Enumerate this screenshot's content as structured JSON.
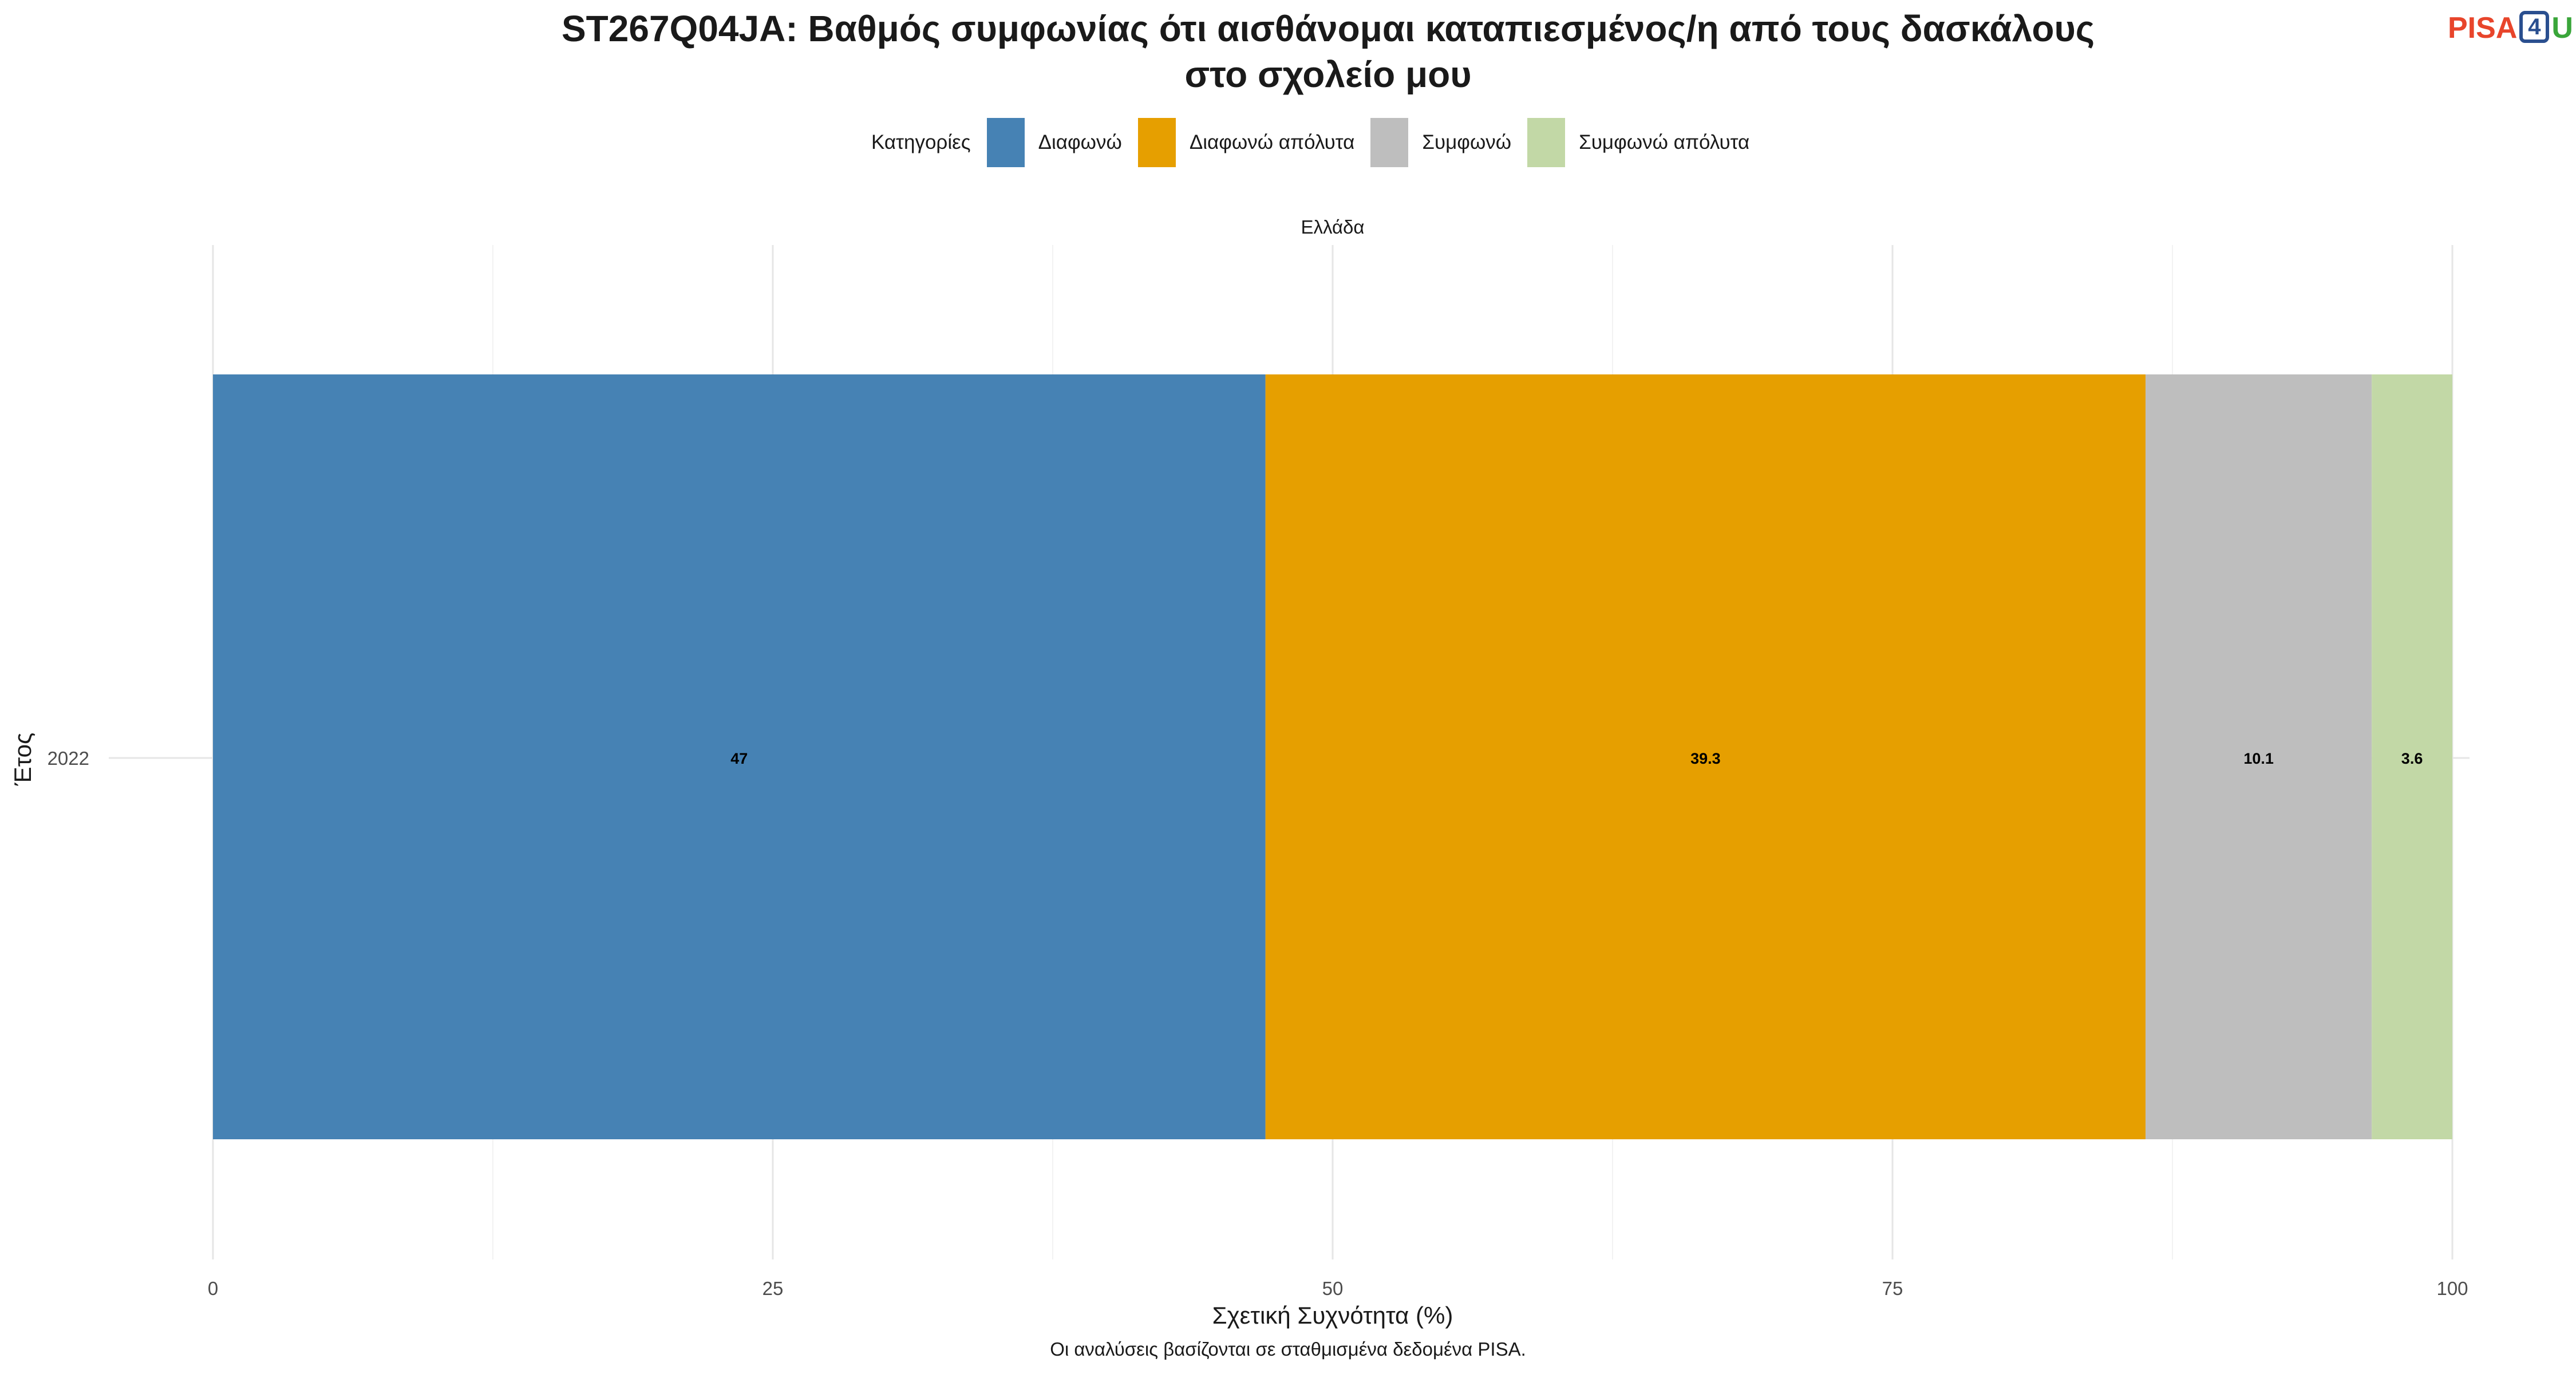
{
  "logo": {
    "part1": "PISA",
    "part2": "4",
    "part3": "U"
  },
  "chart_data": {
    "type": "bar",
    "orientation": "horizontal",
    "stacked": true,
    "title_line1": "ST267Q04JA: Βαθμός συμφωνίας ότι αισθάνομαι καταπιεσμένος/η από τους δασκάλους",
    "title_line2": "στο σχολείο μου",
    "facet_label": "Ελλάδα",
    "categories": [
      "2022"
    ],
    "series": [
      {
        "name": "Διαφωνώ",
        "values": [
          47
        ],
        "color": "#4682b4"
      },
      {
        "name": "Διαφωνώ απόλυτα",
        "values": [
          39.3
        ],
        "color": "#e69f00"
      },
      {
        "name": "Συμφωνώ",
        "values": [
          10.1
        ],
        "color": "#bebebe"
      },
      {
        "name": "Συμφωνώ απόλυτα",
        "values": [
          3.6
        ],
        "color": "#c2d8a6"
      }
    ],
    "legend_title": "Κατηγορίες",
    "legend_position": "top",
    "xlabel": "Σχετική Συχνότητα (%)",
    "ylabel": "Έτος",
    "xlim": [
      0,
      100
    ],
    "xticks": [
      "0",
      "25",
      "50",
      "75",
      "100"
    ],
    "grid": true,
    "caption": "Οι αναλύσεις βασίζονται σε σταθμισμένα δεδομένα PISA."
  }
}
